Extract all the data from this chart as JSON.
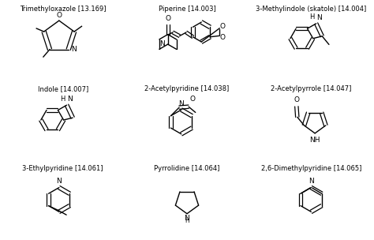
{
  "compounds": [
    {
      "name": "Trimethyloxazole",
      "number": "13.169",
      "col": 0,
      "row": 0
    },
    {
      "name": "Piperine",
      "number": "14.003",
      "col": 1,
      "row": 0
    },
    {
      "name": "3-Methylindole (skatole)",
      "number": "14.004",
      "col": 2,
      "row": 0
    },
    {
      "name": "Indole",
      "number": "14.007",
      "col": 0,
      "row": 1
    },
    {
      "name": "2-Acetylpyridine",
      "number": "14.038",
      "col": 1,
      "row": 1
    },
    {
      "name": "2-Acetylpyrrole",
      "number": "14.047",
      "col": 2,
      "row": 1
    },
    {
      "name": "3-Ethylpyridine",
      "number": "14.061",
      "col": 0,
      "row": 2
    },
    {
      "name": "Pyrrolidine",
      "number": "14.064",
      "col": 1,
      "row": 2
    },
    {
      "name": "2,6-Dimethylpyridine",
      "number": "14.065",
      "col": 2,
      "row": 2
    }
  ],
  "bg_color": "#ffffff",
  "text_color": "#000000",
  "line_color": "#000000",
  "label_fontsize": 6.0,
  "figsize": [
    4.74,
    3.04
  ],
  "dpi": 100
}
